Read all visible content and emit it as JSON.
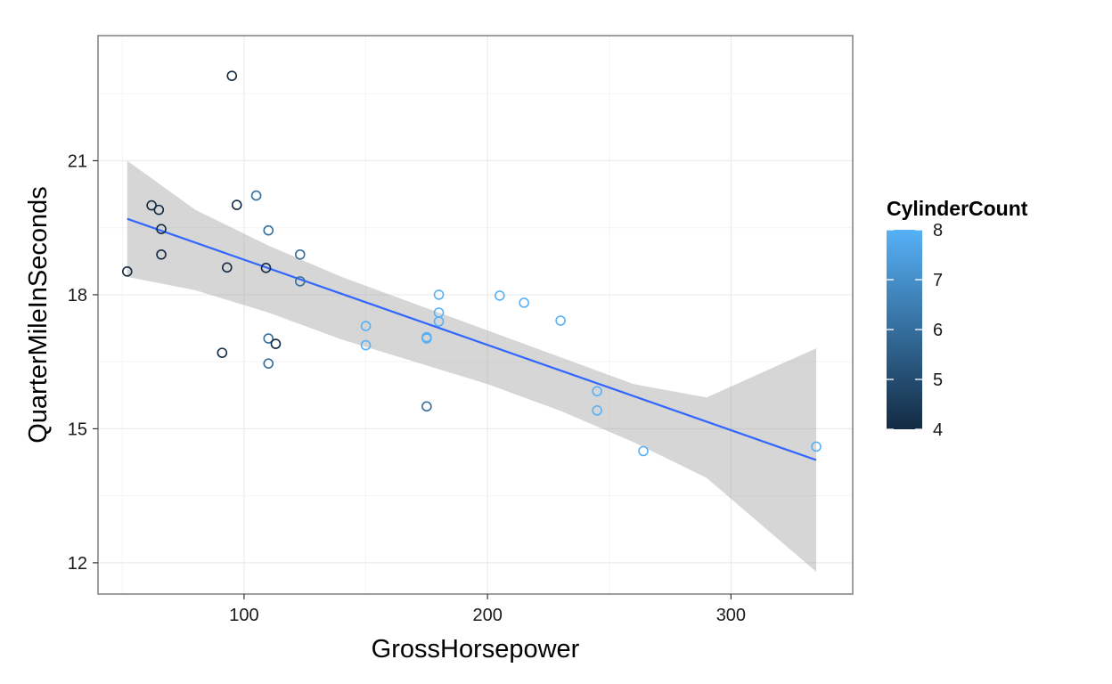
{
  "chart_data": {
    "type": "scatter",
    "title": "",
    "xlabel": "GrossHorsepower",
    "ylabel": "QuarterMileInSeconds",
    "xlim": [
      40,
      350
    ],
    "ylim": [
      11.3,
      23.8
    ],
    "x_ticks": [
      100,
      200,
      300
    ],
    "y_ticks": [
      12,
      15,
      18,
      21
    ],
    "grid": true,
    "legend": {
      "title": "CylinderCount",
      "position": "right",
      "min": 4,
      "max": 8,
      "ticks": [
        4,
        5,
        6,
        7,
        8
      ],
      "low_color": "#132b43",
      "high_color": "#56b1f7"
    },
    "points": [
      {
        "x": 110,
        "y": 16.46,
        "color": 6
      },
      {
        "x": 110,
        "y": 17.02,
        "color": 6
      },
      {
        "x": 93,
        "y": 18.61,
        "color": 4
      },
      {
        "x": 110,
        "y": 19.44,
        "color": 6
      },
      {
        "x": 175,
        "y": 17.02,
        "color": 8
      },
      {
        "x": 105,
        "y": 20.22,
        "color": 6
      },
      {
        "x": 245,
        "y": 15.84,
        "color": 8
      },
      {
        "x": 62,
        "y": 20.0,
        "color": 4
      },
      {
        "x": 95,
        "y": 22.9,
        "color": 4
      },
      {
        "x": 123,
        "y": 18.3,
        "color": 6
      },
      {
        "x": 123,
        "y": 18.9,
        "color": 6
      },
      {
        "x": 180,
        "y": 17.4,
        "color": 8
      },
      {
        "x": 180,
        "y": 17.6,
        "color": 8
      },
      {
        "x": 180,
        "y": 18.0,
        "color": 8
      },
      {
        "x": 205,
        "y": 17.98,
        "color": 8
      },
      {
        "x": 215,
        "y": 17.82,
        "color": 8
      },
      {
        "x": 230,
        "y": 17.42,
        "color": 8
      },
      {
        "x": 66,
        "y": 19.47,
        "color": 4
      },
      {
        "x": 52,
        "y": 18.52,
        "color": 4
      },
      {
        "x": 65,
        "y": 19.9,
        "color": 4
      },
      {
        "x": 97,
        "y": 20.01,
        "color": 4
      },
      {
        "x": 150,
        "y": 16.87,
        "color": 8
      },
      {
        "x": 150,
        "y": 17.3,
        "color": 8
      },
      {
        "x": 245,
        "y": 15.41,
        "color": 8
      },
      {
        "x": 175,
        "y": 17.05,
        "color": 8
      },
      {
        "x": 66,
        "y": 18.9,
        "color": 4
      },
      {
        "x": 91,
        "y": 16.7,
        "color": 4
      },
      {
        "x": 113,
        "y": 16.9,
        "color": 4
      },
      {
        "x": 264,
        "y": 14.5,
        "color": 8
      },
      {
        "x": 175,
        "y": 15.5,
        "color": 6
      },
      {
        "x": 335,
        "y": 14.6,
        "color": 8
      },
      {
        "x": 109,
        "y": 18.6,
        "color": 4
      }
    ],
    "trend_line": {
      "method": "linear regression",
      "color": "#3366ff",
      "x_range": [
        52,
        335
      ],
      "y_range": [
        19.7,
        14.3
      ]
    },
    "confidence_band": {
      "color": "#999999",
      "opacity": 0.4,
      "x": [
        52,
        80,
        110,
        140,
        170,
        200,
        230,
        260,
        290,
        335
      ],
      "lower": [
        18.4,
        18.1,
        17.6,
        17.0,
        16.5,
        16.0,
        15.4,
        14.7,
        13.9,
        11.8
      ],
      "upper": [
        21.0,
        19.9,
        19.1,
        18.4,
        17.8,
        17.2,
        16.6,
        16.0,
        15.7,
        16.8
      ]
    }
  }
}
